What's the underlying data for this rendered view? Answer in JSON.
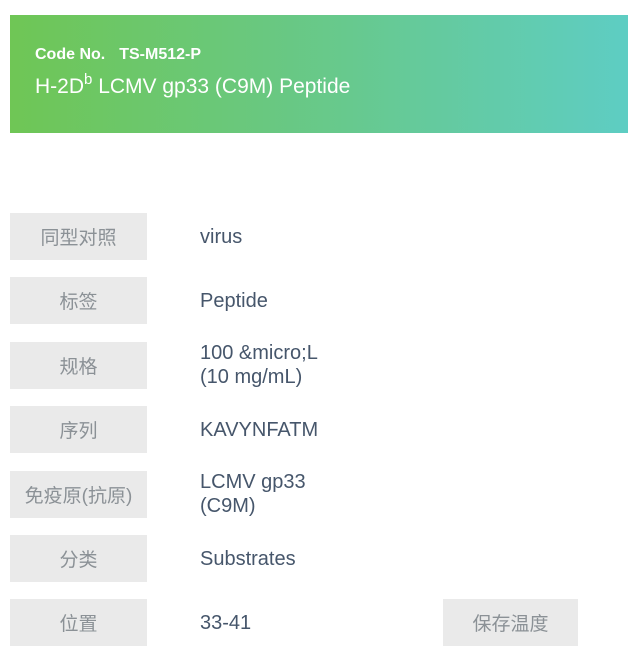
{
  "header": {
    "code_label": "Code No.",
    "code_value": "TS-M512-P",
    "title_base": "H-2D",
    "title_sup": "b",
    "title_rest": " LCMV gp33 (C9M) Peptide",
    "gradient_start": "#6fc655",
    "gradient_end": "#5ecdc3",
    "text_color": "#ffffff"
  },
  "details": {
    "rows": [
      {
        "label": "同型对照",
        "value": "virus"
      },
      {
        "label": "标签",
        "value": "Peptide"
      },
      {
        "label": "规格",
        "value": "100 &micro;L\n(10 mg/mL)"
      },
      {
        "label": "序列",
        "value": "KAVYNFATM"
      },
      {
        "label": "免疫原(抗原)",
        "value": "LCMV gp33\n(C9M)"
      },
      {
        "label": "分类",
        "value": "Substrates"
      },
      {
        "label": "位置",
        "value": "33-41",
        "extra_label": "保存温度"
      }
    ]
  },
  "colors": {
    "label_box_bg": "#eaeaea",
    "label_text": "#8b9196",
    "value_text": "#46566b"
  }
}
